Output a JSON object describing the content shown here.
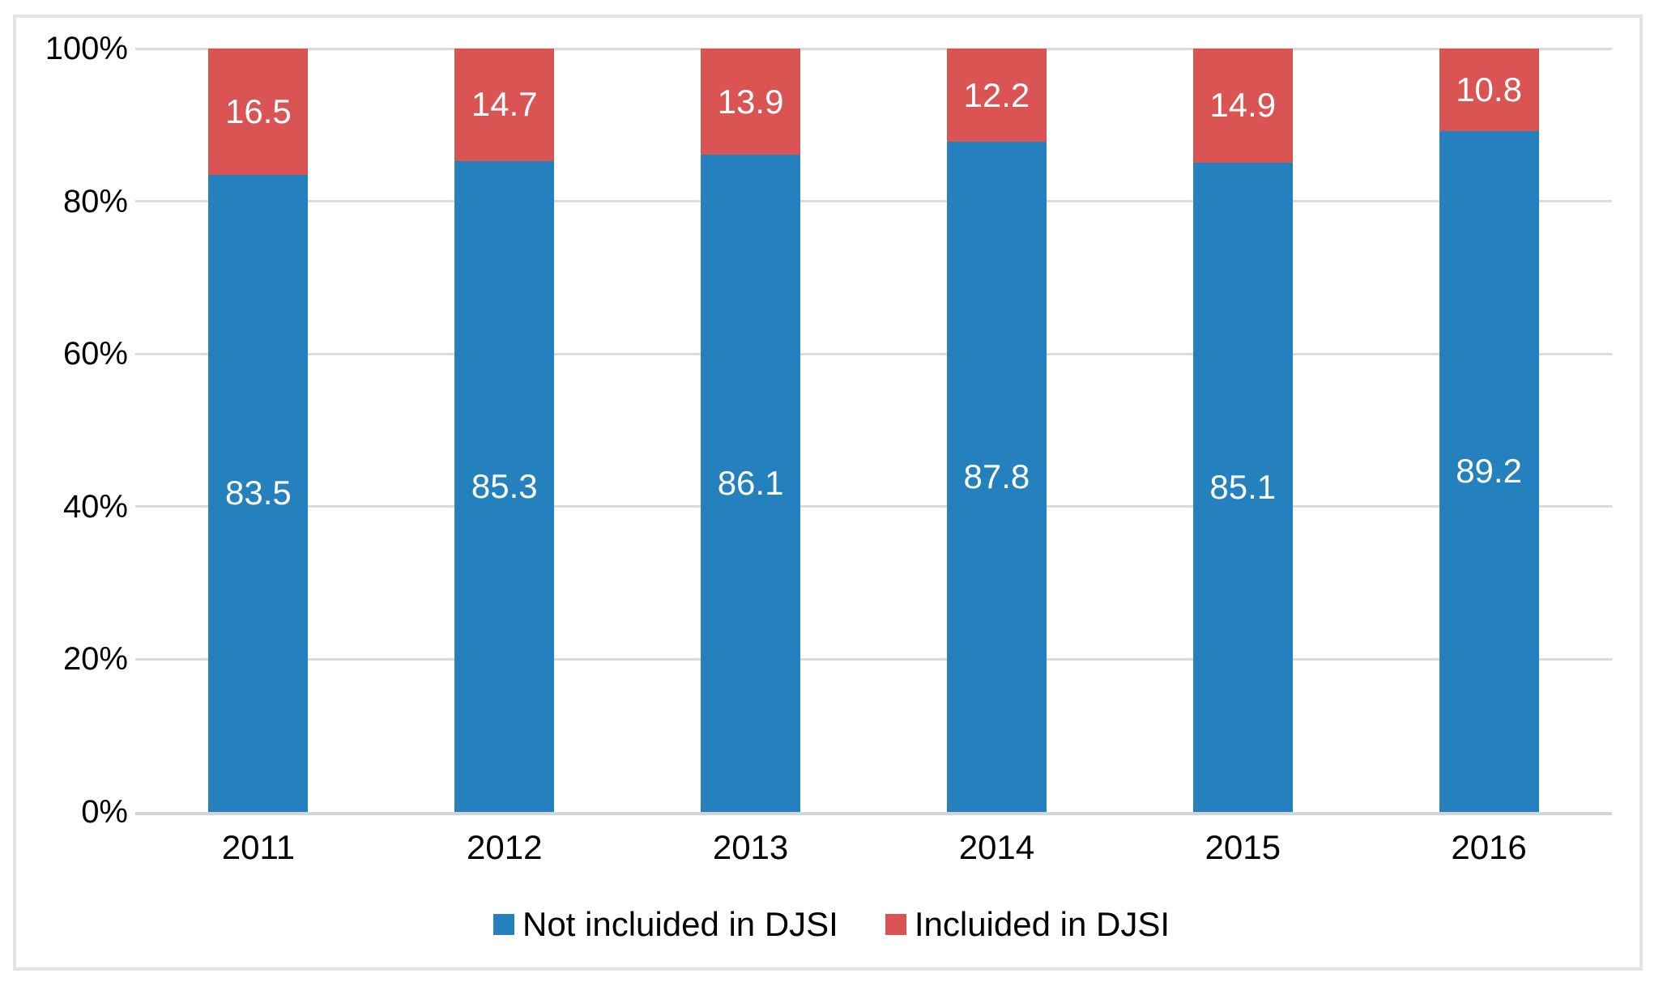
{
  "chart_data": {
    "type": "bar",
    "stacked": true,
    "title": "",
    "categories": [
      "2011",
      "2012",
      "2013",
      "2014",
      "2015",
      "2016"
    ],
    "series": [
      {
        "name": "Not incluided in DJSI",
        "color": "#2580be",
        "values": [
          83.5,
          85.3,
          86.1,
          87.8,
          85.1,
          89.2
        ]
      },
      {
        "name": "Incluided in DJSI",
        "color": "#d95452",
        "values": [
          16.5,
          14.7,
          13.9,
          12.2,
          14.9,
          10.8
        ]
      }
    ],
    "xlabel": "",
    "ylabel": "",
    "ylim": [
      0,
      100
    ],
    "yticks": [
      "0%",
      "20%",
      "40%",
      "60%",
      "80%",
      "100%"
    ],
    "grid": true,
    "legend_position": "bottom",
    "data_label_color": "#ffffff",
    "gridline_color": "#dcdcdc",
    "border_color": "#e4e4e4"
  }
}
